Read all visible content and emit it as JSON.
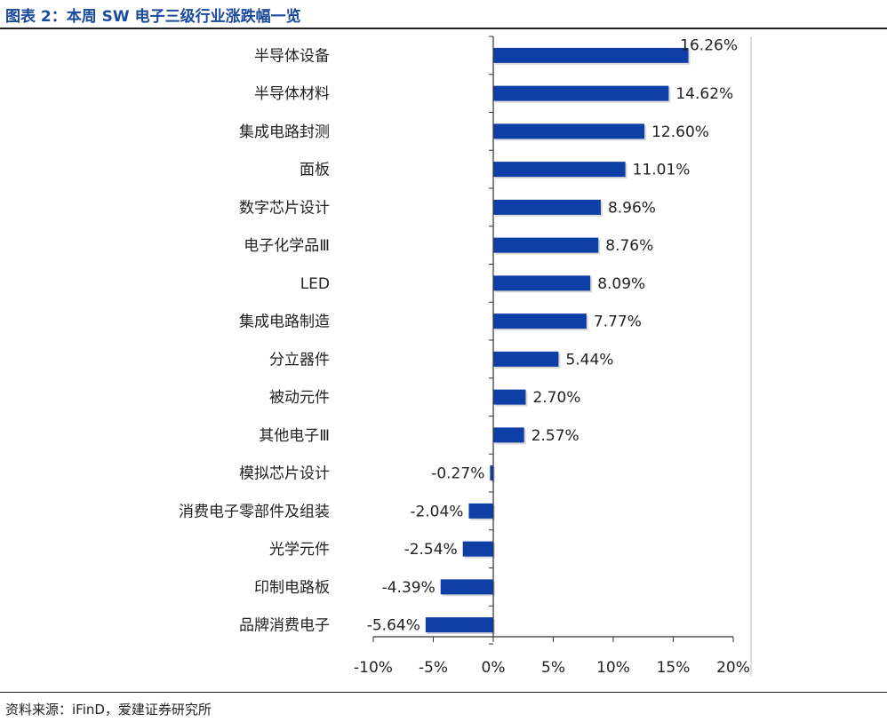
{
  "title": "图表 2：本周 SW 电子三级行业涨跌幅一览",
  "source": "资料来源：iFinD，爱建证券研究所",
  "colors": {
    "bar": "#0d3fa6",
    "title": "#1a4a9c",
    "text": "#222222",
    "axis": "#333333"
  },
  "chart_data": {
    "type": "bar",
    "orientation": "horizontal",
    "title": "图表 2：本周 SW 电子三级行业涨跌幅一览",
    "xlabel": "",
    "ylabel": "",
    "xlim": [
      -10,
      20
    ],
    "xticks": [
      -10,
      -5,
      0,
      5,
      10,
      15,
      20
    ],
    "xtick_labels": [
      "-10%",
      "-5%",
      "0%",
      "5%",
      "10%",
      "15%",
      "20%"
    ],
    "grid": false,
    "legend": "none",
    "categories": [
      "半导体设备",
      "半导体材料",
      "集成电路封测",
      "面板",
      "数字芯片设计",
      "电子化学品Ⅲ",
      "LED",
      "集成电路制造",
      "分立器件",
      "被动元件",
      "其他电子Ⅲ",
      "模拟芯片设计",
      "消费电子零部件及组装",
      "光学元件",
      "印制电路板",
      "品牌消费电子"
    ],
    "values": [
      16.26,
      14.62,
      12.6,
      11.01,
      8.96,
      8.76,
      8.09,
      7.77,
      5.44,
      2.7,
      2.57,
      -0.27,
      -2.04,
      -2.54,
      -4.39,
      -5.64
    ],
    "data_labels": [
      "16.26%",
      "14.62%",
      "12.60%",
      "11.01%",
      "8.96%",
      "8.76%",
      "8.09%",
      "7.77%",
      "5.44%",
      "2.70%",
      "2.57%",
      "-0.27%",
      "-2.04%",
      "-2.54%",
      "-4.39%",
      "-5.64%"
    ]
  }
}
